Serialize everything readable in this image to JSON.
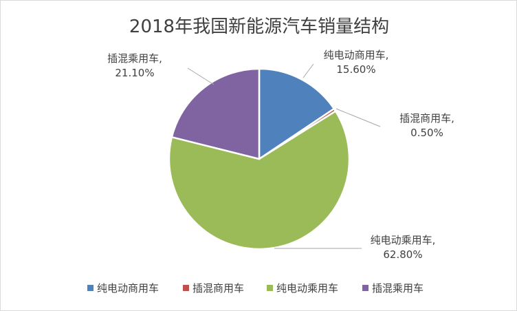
{
  "chart_data": {
    "type": "pie",
    "title": "2018年我国新能源汽车销量结构",
    "slices": [
      {
        "name": "纯电动商用车",
        "value": 15.6,
        "label_name": "纯电动商用车,",
        "label_value": "15.60%",
        "color": "#4f81bd"
      },
      {
        "name": "插混商用车",
        "value": 0.5,
        "label_name": "插混商用车,",
        "label_value": "0.50%",
        "color": "#c0504d"
      },
      {
        "name": "纯电动乘用车",
        "value": 62.8,
        "label_name": "纯电动乘用车,",
        "label_value": "62.80%",
        "color": "#9bbb59"
      },
      {
        "name": "插混乘用车",
        "value": 21.1,
        "label_name": "插混乘用车,",
        "label_value": "21.10%",
        "color": "#8064a2"
      }
    ],
    "legend": {
      "position": "bottom"
    },
    "leader_line_color": "#a6a6a6"
  }
}
